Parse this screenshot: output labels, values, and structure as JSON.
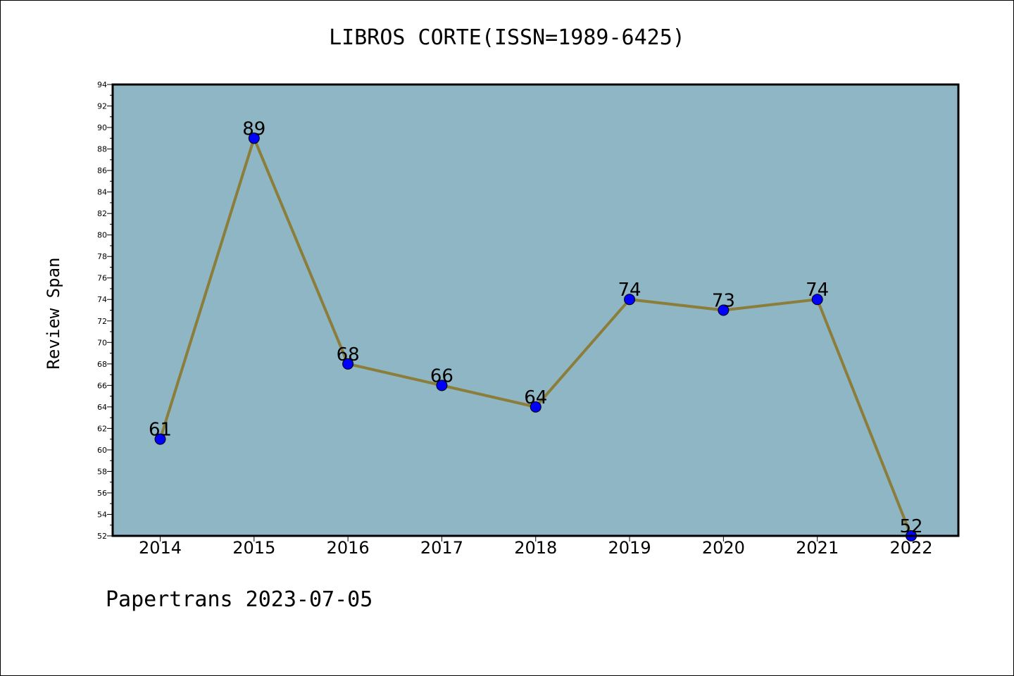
{
  "chart_data": {
    "type": "line",
    "title": "LIBROS CORTE(ISSN=1989-6425)",
    "xlabel": "",
    "ylabel": "Review Span",
    "categories": [
      "2014",
      "2015",
      "2016",
      "2017",
      "2018",
      "2019",
      "2020",
      "2021",
      "2022"
    ],
    "series": [
      {
        "values": [
          61,
          89,
          68,
          66,
          64,
          74,
          73,
          74,
          52
        ],
        "line_color": "#8b7d3a",
        "marker_color": "#0000ff"
      }
    ],
    "ylim": [
      52,
      94
    ],
    "y_ticks": [
      52,
      54,
      56,
      58,
      60,
      62,
      64,
      66,
      68,
      70,
      72,
      74,
      76,
      78,
      80,
      82,
      84,
      86,
      88,
      90,
      92,
      94
    ],
    "plot_background": "#8fb6c4",
    "grid": false,
    "data_labels": true
  },
  "footer": {
    "text": "Papertrans 2023-07-05"
  }
}
